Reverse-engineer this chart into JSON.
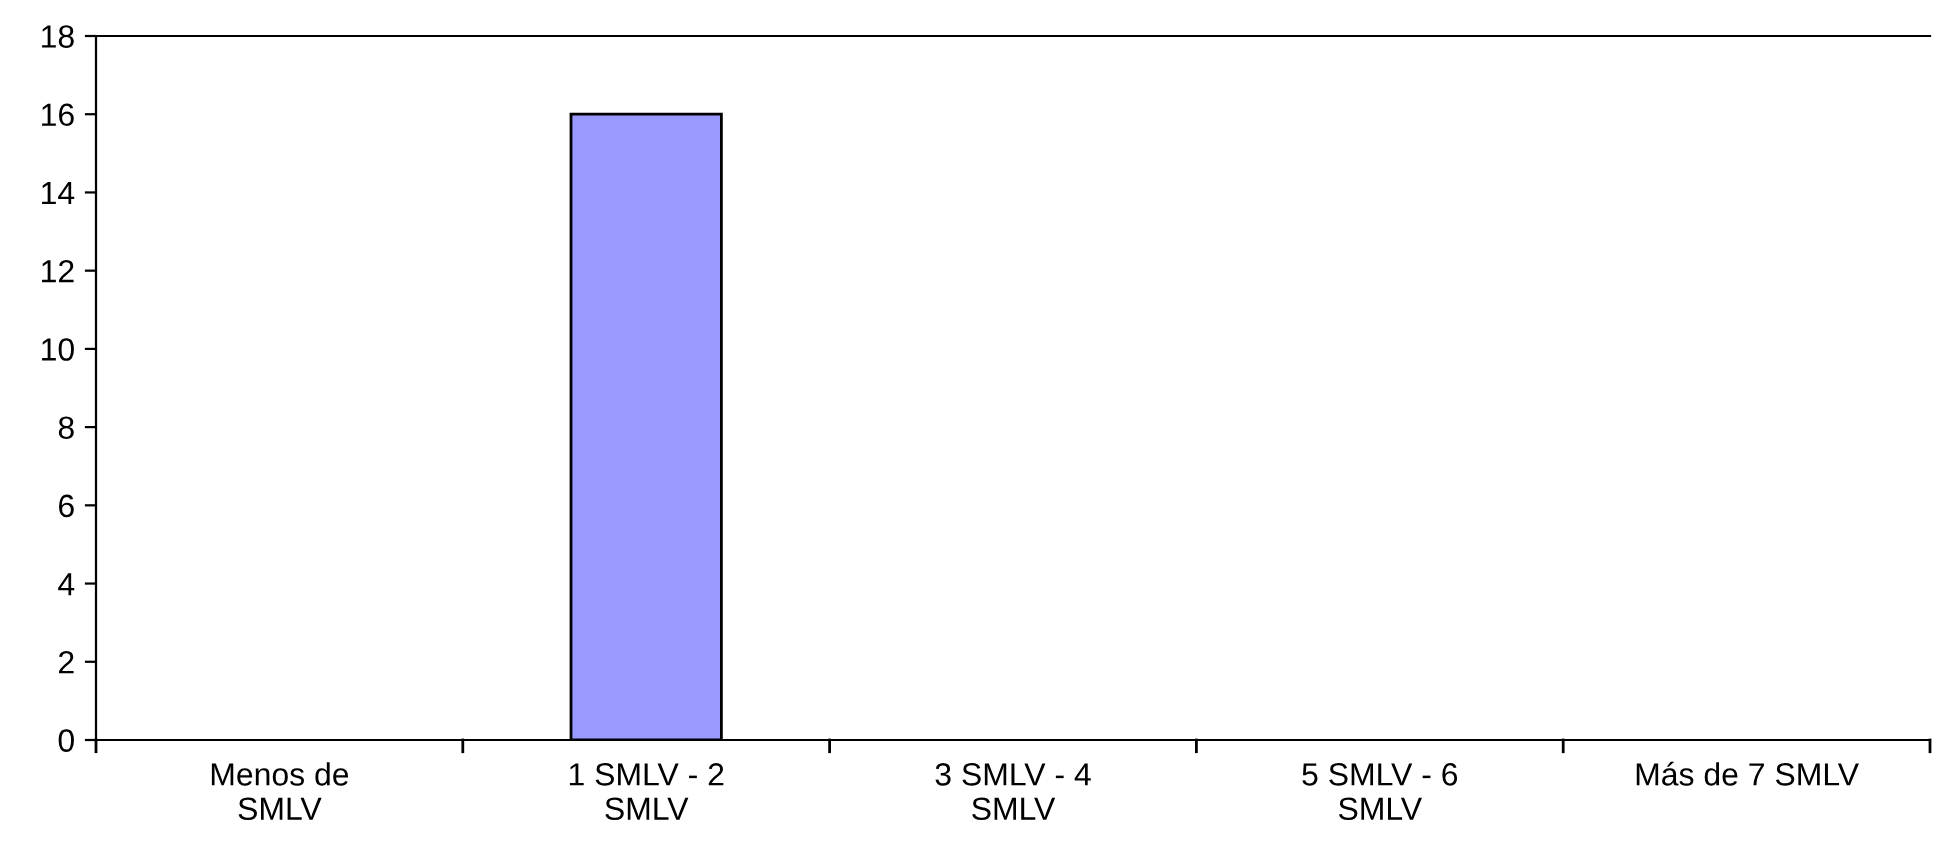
{
  "chart_data": {
    "type": "bar",
    "categories": [
      "Menos de\nSMLV",
      "1 SMLV - 2\nSMLV",
      "3 SMLV - 4\nSMLV",
      "5 SMLV - 6\nSMLV",
      "Más de 7 SMLV"
    ],
    "values": [
      0,
      16,
      0,
      0,
      0
    ],
    "color": "#9999ff",
    "ylim": [
      0,
      18
    ],
    "yticks": [
      0,
      2,
      4,
      6,
      8,
      10,
      12,
      14,
      16,
      18
    ],
    "grid": false,
    "legend": false
  }
}
